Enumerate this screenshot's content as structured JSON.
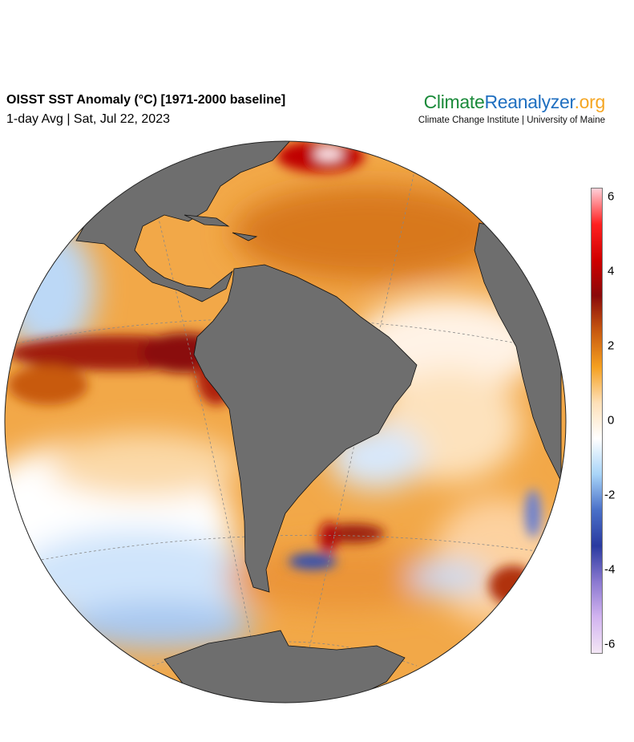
{
  "header": {
    "title": "OISST SST Anomaly (°C) [1971-2000 baseline]",
    "subtitle": "1-day Avg | Sat, Jul 22, 2023"
  },
  "logo": {
    "part1": "Climate",
    "part2": "Reanalyzer",
    "part3": ".org",
    "subtext": "Climate Change Institute | University of Maine",
    "colors": {
      "part1": "#1a8a3a",
      "part2": "#1f6fc0",
      "part3": "#f5a623"
    }
  },
  "map": {
    "projection": "orthographic",
    "land_color": "#6e6e6e",
    "variable": "SST anomaly"
  },
  "colorbar": {
    "min": -6,
    "max": 6,
    "ticks": [
      "6",
      "4",
      "2",
      "0",
      "-2",
      "-4",
      "-6"
    ],
    "colors": [
      "#f3e6f5",
      "#d2b4f0",
      "#8a78d0",
      "#2a3aa0",
      "#4a70c8",
      "#a8d4f8",
      "#ffffff",
      "#fde0b8",
      "#f5a020",
      "#c85a10",
      "#8a0a0a",
      "#d00000",
      "#ff2020",
      "#ffd0d8"
    ]
  }
}
